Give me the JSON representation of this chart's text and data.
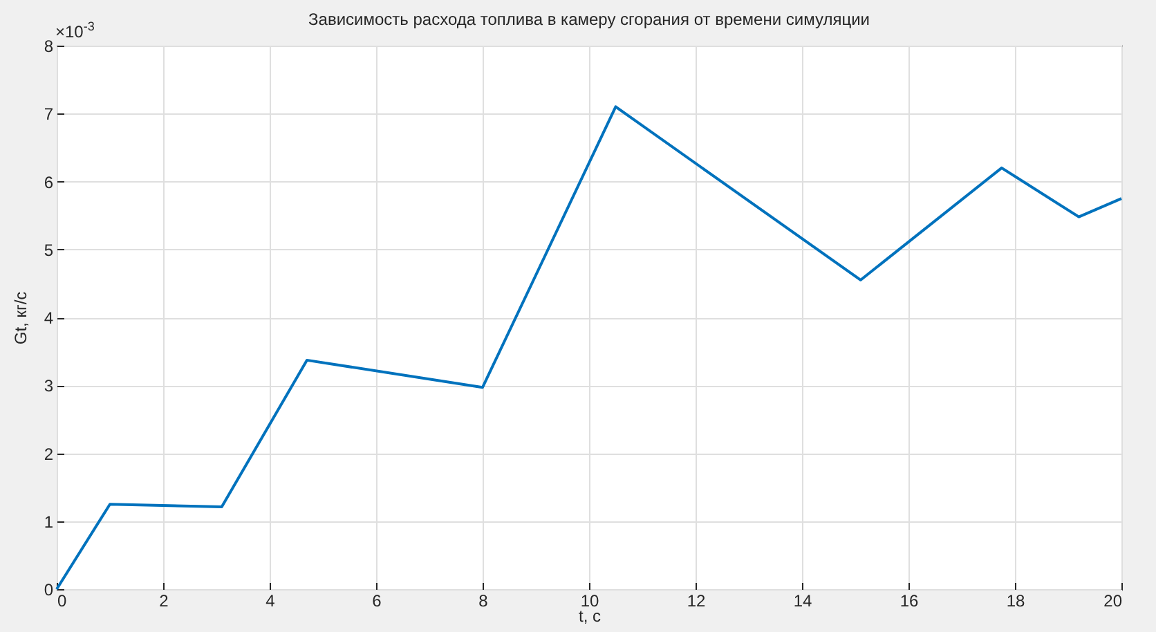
{
  "chart_data": {
    "type": "line",
    "title": "Зависимость расхода топлива в камеру сгорания от времени симуляции",
    "xlabel": "t, c",
    "ylabel": "Gt, кг/c",
    "annotations": [
      "×10$^{-3}$"
    ],
    "x": [
      0,
      1,
      3.1,
      4.7,
      8,
      10.5,
      15.1,
      17.75,
      19.2,
      20
    ],
    "series": [
      {
        "color": "#0072bd",
        "values": [
          0,
          1.25,
          1.21,
          3.37,
          2.97,
          7.1,
          4.55,
          6.2,
          5.48,
          5.75
        ]
      }
    ],
    "xlim": [
      0,
      20
    ],
    "xticks": [
      0,
      2,
      4,
      6,
      8,
      10,
      12,
      14,
      16,
      18,
      20
    ],
    "ylim": [
      0,
      8
    ],
    "yticks": [
      0,
      1,
      2,
      3,
      4,
      5,
      6,
      7,
      8
    ],
    "grid": true,
    "marker": "none",
    "line_style": "solid"
  }
}
